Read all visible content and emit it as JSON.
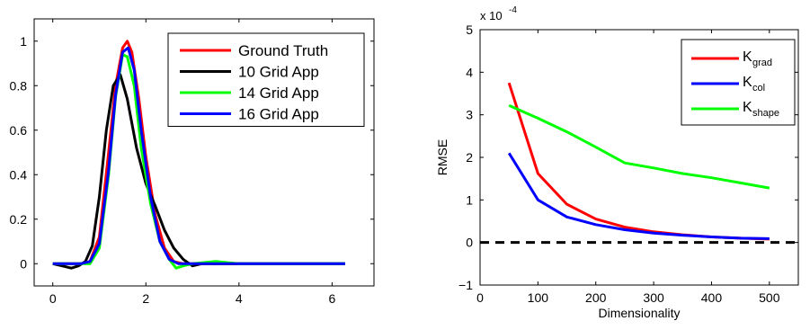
{
  "chart_data": [
    {
      "type": "line",
      "title": "",
      "xlabel": "",
      "ylabel": "",
      "xlim": [
        -0.4,
        6.9
      ],
      "ylim": [
        -0.1,
        1.1
      ],
      "xticks": [
        0,
        2,
        4,
        6
      ],
      "yticks": [
        0,
        0.2,
        0.4,
        0.6,
        0.8,
        1
      ],
      "xtick_labels": [
        "0",
        "2",
        "4",
        "6"
      ],
      "ytick_labels": [
        "0",
        "0.2",
        "0.4",
        "0.6",
        "0.8",
        "1"
      ],
      "grid": false,
      "legend_position": "top-right",
      "series": [
        {
          "name": "Ground Truth",
          "color": "#ff0000",
          "x": [
            0,
            0.3,
            0.6,
            0.8,
            1.0,
            1.2,
            1.35,
            1.5,
            1.6,
            1.7,
            1.85,
            2.0,
            2.2,
            2.4,
            2.6,
            2.8,
            3.0,
            3.5,
            4.0,
            5.0,
            6.28
          ],
          "y": [
            0,
            0,
            0,
            0.01,
            0.12,
            0.5,
            0.8,
            0.97,
            1.0,
            0.95,
            0.74,
            0.48,
            0.22,
            0.07,
            0.01,
            0,
            0,
            0,
            0,
            0,
            0
          ]
        },
        {
          "name": "10 Grid App",
          "color": "#000000",
          "x": [
            0,
            0.2,
            0.4,
            0.55,
            0.7,
            0.85,
            1.0,
            1.15,
            1.3,
            1.45,
            1.6,
            1.8,
            2.0,
            2.2,
            2.4,
            2.6,
            2.8,
            3.0,
            3.2,
            3.5,
            4.0,
            5.0,
            6.28
          ],
          "y": [
            0,
            -0.01,
            -0.02,
            -0.01,
            0.01,
            0.08,
            0.3,
            0.6,
            0.8,
            0.85,
            0.74,
            0.52,
            0.36,
            0.26,
            0.15,
            0.07,
            0.02,
            -0.01,
            0,
            0,
            0,
            0,
            0
          ]
        },
        {
          "name": "14 Grid App",
          "color": "#00ff00",
          "x": [
            0,
            0.5,
            0.8,
            1.0,
            1.2,
            1.35,
            1.5,
            1.6,
            1.75,
            1.9,
            2.1,
            2.3,
            2.5,
            2.65,
            2.8,
            3.0,
            3.5,
            4.0,
            5.0,
            6.28
          ],
          "y": [
            0,
            0,
            0,
            0.07,
            0.4,
            0.75,
            0.94,
            0.93,
            0.8,
            0.52,
            0.27,
            0.1,
            0.02,
            -0.02,
            -0.01,
            0,
            0.01,
            0,
            0,
            0
          ]
        },
        {
          "name": "16 Grid App",
          "color": "#0000ff",
          "x": [
            0,
            0.6,
            0.8,
            1.0,
            1.2,
            1.35,
            1.5,
            1.62,
            1.75,
            1.9,
            2.1,
            2.3,
            2.5,
            2.7,
            3.0,
            3.5,
            4.0,
            5.0,
            6.28
          ],
          "y": [
            0,
            0,
            0.01,
            0.09,
            0.42,
            0.76,
            0.95,
            0.97,
            0.87,
            0.6,
            0.3,
            0.1,
            0.02,
            0,
            0,
            0,
            0,
            0,
            0
          ]
        }
      ]
    },
    {
      "type": "line",
      "title": "",
      "xlabel": "Dimensionality",
      "ylabel": "RMSE",
      "scale_label": "x 10",
      "scale_exponent": "-4",
      "xlim": [
        0,
        550
      ],
      "ylim": [
        -1,
        5
      ],
      "xticks": [
        0,
        100,
        200,
        300,
        400,
        500
      ],
      "yticks": [
        -1,
        0,
        1,
        2,
        3,
        4,
        5
      ],
      "xtick_labels": [
        "0",
        "100",
        "200",
        "300",
        "400",
        "500"
      ],
      "ytick_labels": [
        "−1",
        "0",
        "1",
        "2",
        "3",
        "4",
        "5"
      ],
      "grid": false,
      "legend_position": "top-right",
      "reference_line": {
        "y": 0,
        "style": "dashed",
        "color": "#000000"
      },
      "series": [
        {
          "name": "K",
          "subscript": "grad",
          "color": "#ff0000",
          "x": [
            50,
            100,
            150,
            200,
            250,
            300,
            350,
            400,
            450,
            500
          ],
          "y": [
            3.75,
            1.62,
            0.9,
            0.55,
            0.36,
            0.25,
            0.18,
            0.13,
            0.1,
            0.08
          ]
        },
        {
          "name": "K",
          "subscript": "col",
          "color": "#0000ff",
          "x": [
            50,
            100,
            150,
            200,
            250,
            300,
            350,
            400,
            450,
            500
          ],
          "y": [
            2.1,
            1.0,
            0.6,
            0.42,
            0.3,
            0.22,
            0.17,
            0.13,
            0.1,
            0.09
          ]
        },
        {
          "name": "K",
          "subscript": "shape",
          "color": "#00ff00",
          "x": [
            50,
            100,
            150,
            200,
            250,
            300,
            350,
            400,
            450,
            500
          ],
          "y": [
            3.22,
            2.92,
            2.6,
            2.24,
            1.87,
            1.75,
            1.62,
            1.52,
            1.4,
            1.28
          ]
        }
      ]
    }
  ]
}
